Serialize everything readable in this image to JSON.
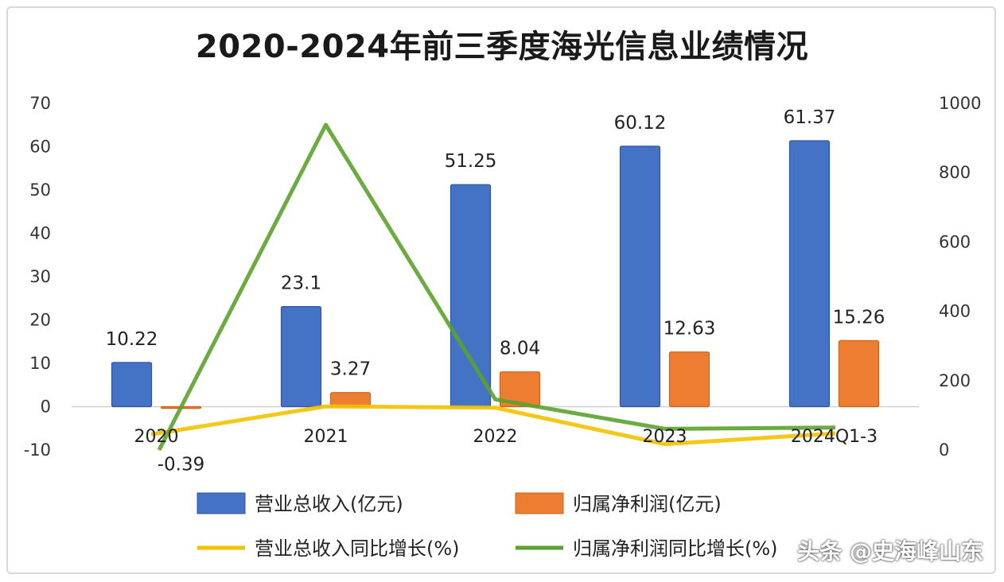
{
  "chart_data": {
    "type": "bar",
    "title": "2020-2024年前三季度海光信息业绩情况",
    "categories": [
      "2020",
      "2021",
      "2022",
      "2023",
      "2024Q1-3"
    ],
    "y_left": {
      "ticks": [
        "70",
        "60",
        "50",
        "40",
        "30",
        "20",
        "10",
        "0",
        "-10"
      ],
      "ylim": [
        -10,
        70
      ]
    },
    "y_right": {
      "ticks": [
        "1000",
        "800",
        "600",
        "400",
        "200",
        "0"
      ],
      "ylim": [
        0,
        1000
      ]
    },
    "series": [
      {
        "name": "营业总收入(亿元)",
        "kind": "bar",
        "axis": "left",
        "color": "#4472C4",
        "values": [
          10.22,
          23.1,
          51.25,
          60.12,
          61.37
        ],
        "labels": [
          "10.22",
          "23.1",
          "51.25",
          "60.12",
          "61.37"
        ]
      },
      {
        "name": "归属净利润(亿元)",
        "kind": "bar",
        "axis": "left",
        "color": "#ED7D31",
        "values": [
          -0.39,
          3.27,
          8.04,
          12.63,
          15.26
        ],
        "labels": [
          "-0.39",
          "3.27",
          "8.04",
          "12.63",
          "15.26"
        ]
      },
      {
        "name": "营业总收入同比增长(%)",
        "kind": "line",
        "axis": "right",
        "color": "#F2C200",
        "values": [
          45,
          126,
          122,
          17,
          48
        ]
      },
      {
        "name": "归属净利润同比增长(%)",
        "kind": "line",
        "axis": "right",
        "color": "#5CA12E",
        "values": [
          0,
          938,
          146,
          61,
          65
        ]
      }
    ],
    "legend_position": "bottom",
    "grid": false
  },
  "watermark": "头条 @史海峰山东"
}
